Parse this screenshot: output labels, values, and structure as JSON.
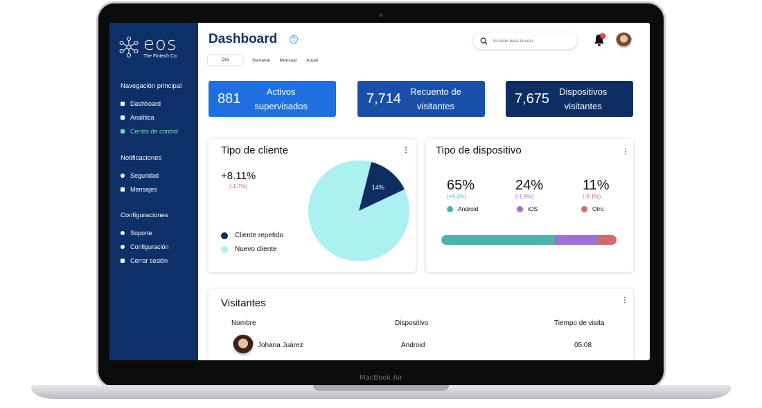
{
  "device": {
    "model_label": "MacBook Air"
  },
  "sidebar": {
    "logo": {
      "name": "eos",
      "tagline": "The Fintech Co."
    },
    "sections": [
      {
        "title": "Navegación principal",
        "items": [
          {
            "label": "Dashboard",
            "icon": "grid-icon"
          },
          {
            "label": "Analítica",
            "icon": "analytics-icon"
          },
          {
            "label": "Centro de control",
            "icon": "control-icon",
            "active": true
          }
        ]
      },
      {
        "title": "Notificaciones",
        "items": [
          {
            "label": "Seguridad",
            "icon": "shield-icon"
          },
          {
            "label": "Mensajes",
            "icon": "message-icon"
          }
        ]
      },
      {
        "title": "Configuraciones",
        "items": [
          {
            "label": "Soporte",
            "icon": "support-icon"
          },
          {
            "label": "Configuración",
            "icon": "gear-icon"
          },
          {
            "label": "Cerrar sesión",
            "icon": "logout-icon"
          }
        ]
      }
    ]
  },
  "header": {
    "title": "Dashboard",
    "help_glyph": "?",
    "tabs": [
      "Día",
      "Semanal",
      "Mensual",
      "Anual"
    ],
    "selected_tab": "Día",
    "search_placeholder": "Escribe para buscar",
    "notification_count": "1"
  },
  "stats": [
    {
      "value": "881",
      "label_line1": "Activos",
      "label_line2": "supervisados",
      "color": "#1f6fe0"
    },
    {
      "value": "7,714",
      "label_line1": "Recuento de",
      "label_line2": "visitantes",
      "color": "#1a4fa8"
    },
    {
      "value": "7,675",
      "label_line1": "Dispositivos",
      "label_line2": "visitantes",
      "color": "#0d2d63"
    }
  ],
  "client_type": {
    "title": "Tipo de cliente",
    "menu_glyph": "⋮",
    "change": "+8.11%",
    "change_sub": "(-1.7%)",
    "legend": [
      {
        "label": "Cliente repetido",
        "color": "#0d2d63"
      },
      {
        "label": "Nuevo cliente",
        "color": "#acf0f0"
      }
    ]
  },
  "device_type": {
    "title": "Tipo de dispositivo",
    "menu_glyph": "⋮",
    "items": [
      {
        "pct": "65%",
        "delta": "(+9.4%)",
        "name": "Android",
        "color": "#4fb3ad",
        "delta_color": "#4fb3ad",
        "share": 0.65
      },
      {
        "pct": "24%",
        "delta": "(-1.9%)",
        "name": "iOS",
        "color": "#a36fd9",
        "delta_color": "#a36fd9",
        "share": 0.24
      },
      {
        "pct": "11%",
        "delta": "(-8.1%)",
        "name": "Otro",
        "color": "#d46a6a",
        "delta_color": "#d46a6a",
        "share": 0.11
      }
    ]
  },
  "visitors": {
    "title": "Visitantes",
    "menu_glyph": "⋮",
    "columns": [
      "Nombre",
      "Dispositivo",
      "Tiempo de visita"
    ],
    "rows": [
      {
        "name": "Johana Juárez",
        "device": "Android",
        "time": "05:08"
      }
    ]
  },
  "chart_data": {
    "type": "pie",
    "categories": [
      "Cliente repetido",
      "Nuevo cliente"
    ],
    "values": [
      14,
      86
    ],
    "data_labels": [
      "14%",
      ""
    ],
    "colors": [
      "#0d2d63",
      "#acf0f0"
    ]
  }
}
